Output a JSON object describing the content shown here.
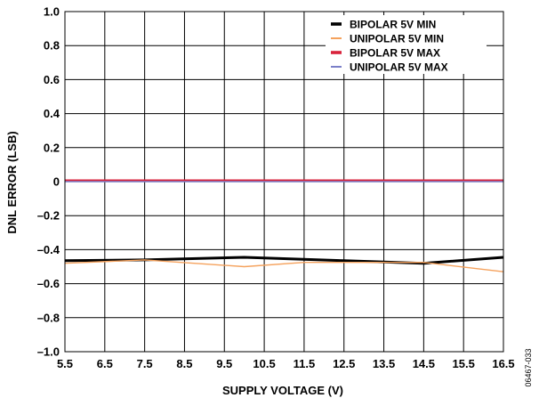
{
  "chart_data": {
    "type": "line",
    "title": "",
    "xlabel": "SUPPLY VOLTAGE (V)",
    "ylabel": "DNL ERROR (LSB)",
    "xlim": [
      5.5,
      16.5
    ],
    "ylim": [
      -1.0,
      1.0
    ],
    "xticks": [
      5.5,
      6.5,
      7.5,
      8.5,
      9.5,
      10.5,
      11.5,
      12.5,
      13.5,
      14.5,
      15.5,
      16.5
    ],
    "xtick_labels": [
      "5.5",
      "6.5",
      "7.5",
      "8.5",
      "9.5",
      "10.5",
      "11.5",
      "12.5",
      "13.5",
      "14.5",
      "15.5",
      "16.5"
    ],
    "yticks": [
      1.0,
      0.8,
      0.6,
      0.4,
      0.2,
      0,
      -0.2,
      -0.4,
      -0.6,
      -0.8,
      -1.0
    ],
    "ytick_labels": [
      "1.0",
      "0.8",
      "0.6",
      "0.4",
      "0.2",
      "0",
      "–0.2",
      "–0.4",
      "–0.6",
      "–0.8",
      "–1.0"
    ],
    "grid": true,
    "legend_position": "top-right",
    "series": [
      {
        "name": "BIPOLAR 5V MIN",
        "color": "#000000",
        "x": [
          5.5,
          7.5,
          10.0,
          12.5,
          14.5,
          16.5
        ],
        "values": [
          -0.465,
          -0.46,
          -0.445,
          -0.465,
          -0.48,
          -0.445
        ]
      },
      {
        "name": "UNIPOLAR 5V MIN",
        "color": "#f5a25d",
        "x": [
          5.5,
          7.5,
          10.0,
          11.5,
          12.5,
          14.5,
          16.5
        ],
        "values": [
          -0.48,
          -0.46,
          -0.5,
          -0.475,
          -0.475,
          -0.475,
          -0.53
        ]
      },
      {
        "name": "BIPOLAR 5V MAX",
        "color": "#d9233c",
        "x": [
          5.5,
          16.5
        ],
        "values": [
          0.005,
          0.005
        ]
      },
      {
        "name": "UNIPOLAR 5V MAX",
        "color": "#7a7fc8",
        "x": [
          5.5,
          16.5
        ],
        "values": [
          0.0,
          0.0
        ]
      }
    ]
  },
  "figure_code": "06467-033"
}
